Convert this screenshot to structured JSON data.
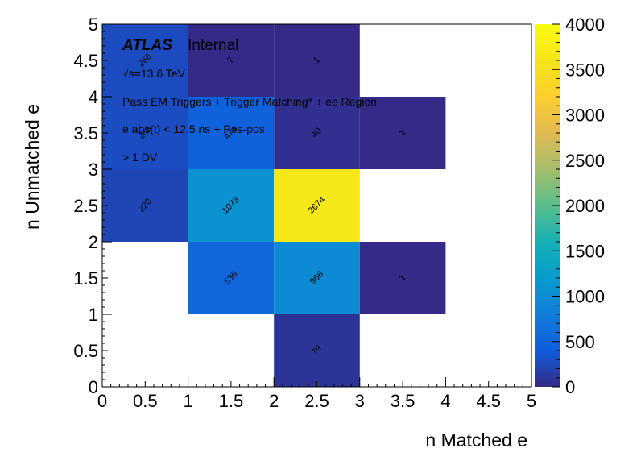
{
  "chart_data": {
    "type": "heatmap",
    "xlabel": "n Matched e",
    "ylabel": "n Unmatched e",
    "xlim": [
      0,
      5
    ],
    "ylim": [
      0,
      5
    ],
    "x_ticks": [
      "0",
      "0.5",
      "1",
      "1.5",
      "2",
      "2.5",
      "3",
      "3.5",
      "4",
      "4.5",
      "5"
    ],
    "y_ticks": [
      "0",
      "0.5",
      "1",
      "1.5",
      "2",
      "2.5",
      "3",
      "3.5",
      "4",
      "4.5",
      "5"
    ],
    "colorbar": {
      "min": 0,
      "max": 4000,
      "ticks": [
        "0",
        "500",
        "1000",
        "1500",
        "2000",
        "2500",
        "3000",
        "3500",
        "4000"
      ],
      "colormap": "parula"
    },
    "cells": [
      {
        "x0": 0,
        "y0": 4,
        "value": 266,
        "label": "266"
      },
      {
        "x0": 1,
        "y0": 4,
        "value": 7,
        "label": "7"
      },
      {
        "x0": 2,
        "y0": 4,
        "value": 1,
        "label": "1"
      },
      {
        "x0": 0,
        "y0": 3,
        "value": 268,
        "label": "268"
      },
      {
        "x0": 1,
        "y0": 3,
        "value": 474,
        "label": "474"
      },
      {
        "x0": 2,
        "y0": 3,
        "value": 40,
        "label": "40"
      },
      {
        "x0": 3,
        "y0": 3,
        "value": 1,
        "label": "1"
      },
      {
        "x0": 0,
        "y0": 2,
        "value": 220,
        "label": "220"
      },
      {
        "x0": 1,
        "y0": 2,
        "value": 1073,
        "label": "1073"
      },
      {
        "x0": 2,
        "y0": 2,
        "value": 3674,
        "label": "3674"
      },
      {
        "x0": 1,
        "y0": 1,
        "value": 536,
        "label": "536"
      },
      {
        "x0": 2,
        "y0": 1,
        "value": 966,
        "label": "966"
      },
      {
        "x0": 3,
        "y0": 1,
        "value": 1,
        "label": "1"
      },
      {
        "x0": 2,
        "y0": 0,
        "value": 79,
        "label": "79"
      }
    ],
    "annotations": {
      "atlas": "ATLAS",
      "atlas_status": "Internal",
      "energy": "√s=13.6 TeV",
      "line1": "Pass EM Triggers + Trigger Matching* + ee Region",
      "line2": "e abs(t) < 12.5 ns + Pos-pos",
      "line3": "> 1 DV"
    }
  }
}
